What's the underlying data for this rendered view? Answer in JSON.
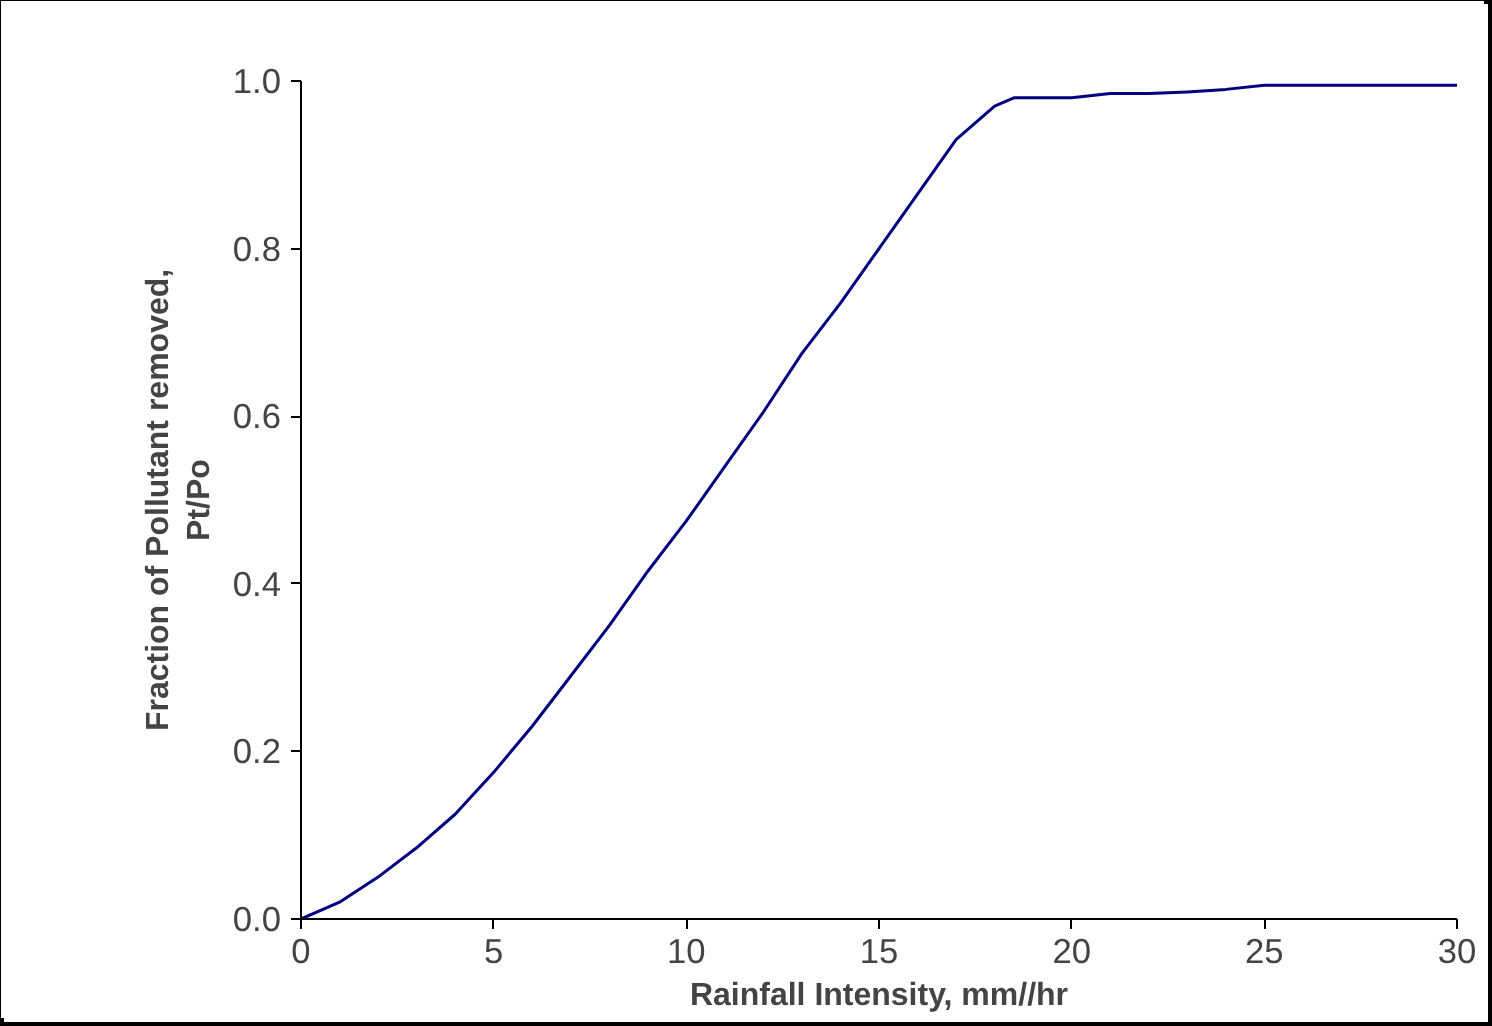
{
  "chart_data": {
    "type": "line",
    "xlabel": "Rainfall Intensity, mm//hr",
    "ylabel": "Fraction of Pollutant removed, Pt/Po",
    "x": [
      0,
      1,
      2,
      3,
      4,
      5,
      6,
      7,
      8,
      9,
      10,
      11,
      12,
      13,
      14,
      15,
      16,
      17,
      18,
      18.5,
      20,
      21,
      22,
      23,
      24,
      25,
      30
    ],
    "series": [
      {
        "color": "#000080",
        "values": [
          0,
          0.02,
          0.05,
          0.085,
          0.125,
          0.175,
          0.23,
          0.29,
          0.35,
          0.415,
          0.475,
          0.54,
          0.605,
          0.675,
          0.735,
          0.8,
          0.865,
          0.93,
          0.97,
          0.98,
          0.98,
          0.985,
          0.985,
          0.987,
          0.99,
          0.995,
          0.995
        ]
      }
    ],
    "xlim": [
      0,
      30
    ],
    "xticks": [
      0,
      5,
      10,
      15,
      20,
      25,
      30
    ],
    "ylim": [
      0,
      1
    ],
    "yticks": [
      {
        "value": 0,
        "label": "0.0"
      },
      {
        "value": 0.2,
        "label": "0.2"
      },
      {
        "value": 0.4,
        "label": "0.4"
      },
      {
        "value": 0.6,
        "label": "0.6"
      },
      {
        "value": 0.8,
        "label": "0.8"
      },
      {
        "value": 1,
        "label": "1.0"
      }
    ],
    "grid": false,
    "marker": "none",
    "line_style": "solid"
  }
}
